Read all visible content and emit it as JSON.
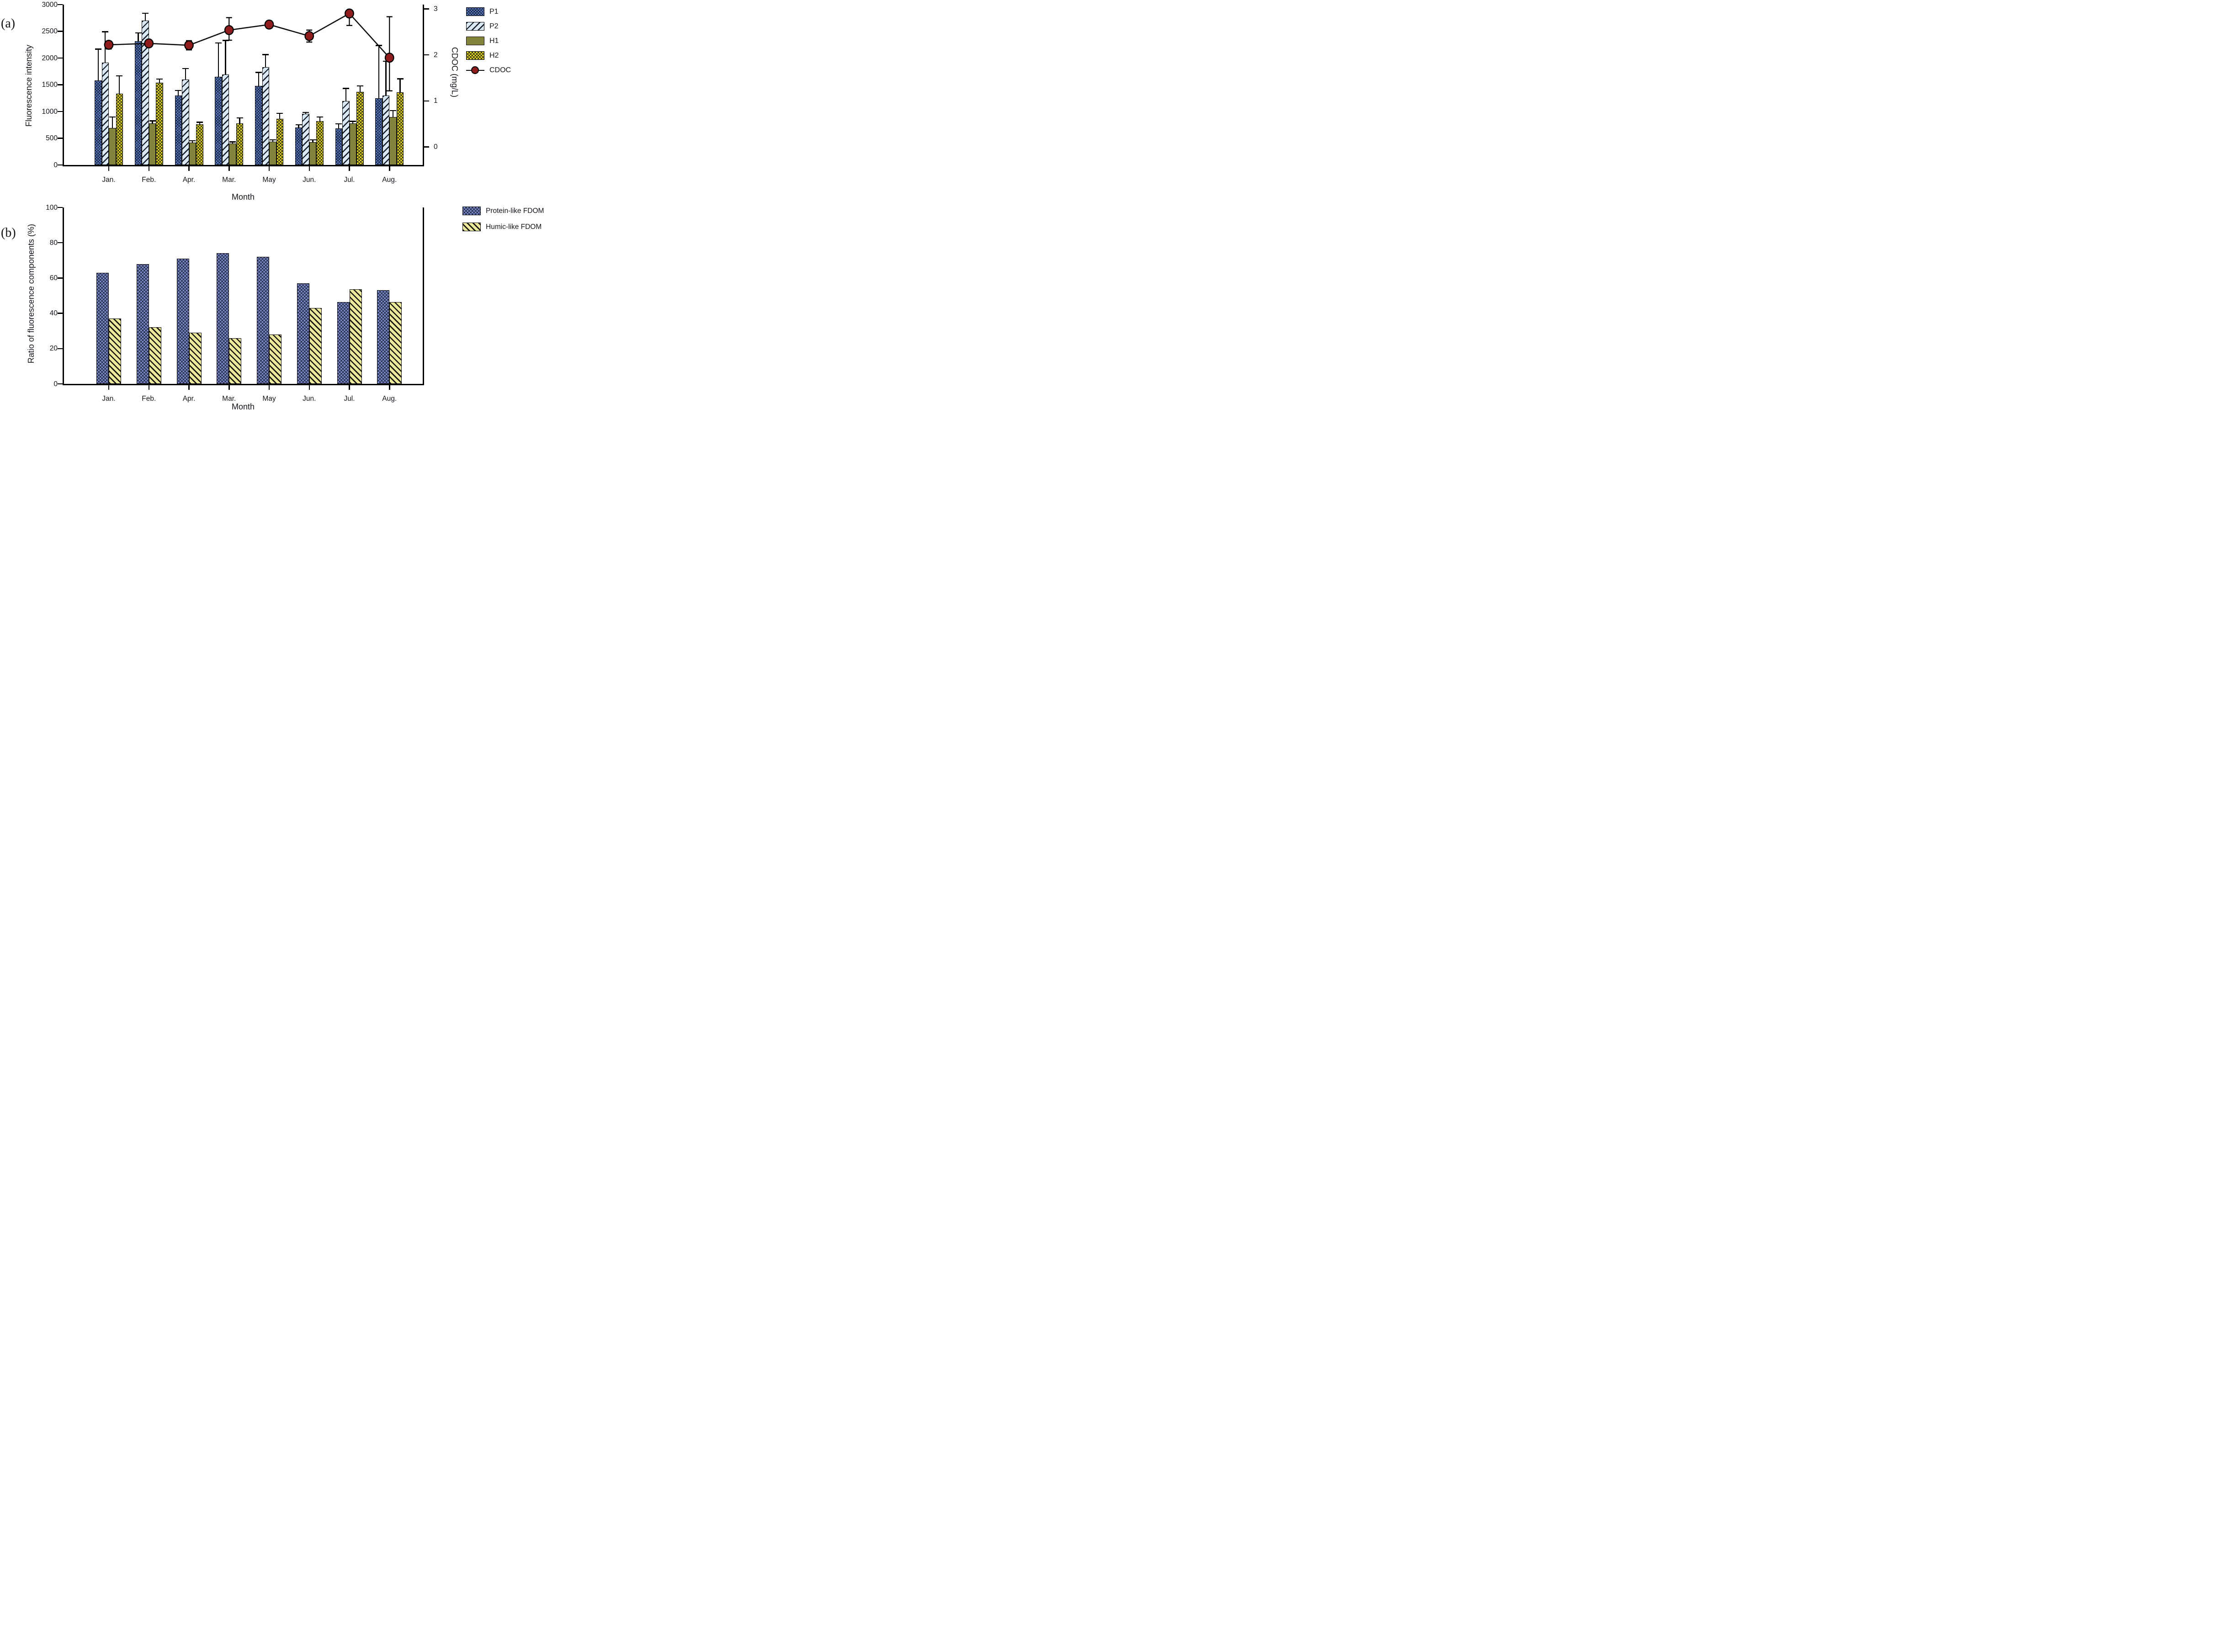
{
  "figure": {
    "panel_a_label": "(a)",
    "panel_b_label": "(b)"
  },
  "colors": {
    "p1_fill": "#5d7fc2",
    "p2_fill": "#d9e8f5",
    "h1_fill": "#84843c",
    "h2_fill": "#f0e329",
    "protein_fill": "#7b8ac8",
    "humic_fill": "#ede99c",
    "hatch": "#0a0a0a",
    "cdoc_marker": "#8f1d1d",
    "line": "#0d0d0d",
    "axis": "#000000"
  },
  "chart_data": [
    {
      "type": "bar",
      "panel": "a",
      "categories": [
        "Jan.",
        "Feb.",
        "Apr.",
        "Mar.",
        "May",
        "Jun.",
        "Jul.",
        "Aug."
      ],
      "xlabel": "Month",
      "ylabel": "Fluorescence intensity",
      "ylim": [
        0,
        3000
      ],
      "yticks": [
        0,
        500,
        1000,
        1500,
        2000,
        2500,
        3000
      ],
      "y2label": "CDOC (mg/L)",
      "y2lim": [
        0,
        3
      ],
      "y2ticks": [
        3,
        2,
        1,
        0
      ],
      "grid": false,
      "legend_position": "top-right",
      "series": [
        {
          "name": "P1",
          "pattern": "blue-crosshatch",
          "values": [
            1580,
            2315,
            1300,
            1650,
            1480,
            705,
            685,
            1245
          ],
          "err_hi": [
            2165,
            2470,
            1395,
            2280,
            1730,
            750,
            770,
            2235
          ]
        },
        {
          "name": "P2",
          "pattern": "lightblue-diagonal",
          "values": [
            1915,
            2705,
            1595,
            1695,
            1830,
            960,
            1195,
            1300
          ],
          "err_hi": [
            2490,
            2835,
            1805,
            2330,
            2065,
            985,
            1430,
            1940
          ]
        },
        {
          "name": "H1",
          "pattern": "olive-solid",
          "values": [
            690,
            780,
            415,
            400,
            440,
            430,
            780,
            895
          ],
          "err_hi": [
            900,
            825,
            455,
            430,
            470,
            470,
            815,
            1015
          ]
        },
        {
          "name": "H2",
          "pattern": "yellow-crosshatch",
          "values": [
            1335,
            1535,
            760,
            780,
            865,
            820,
            1370,
            1355
          ],
          "err_hi": [
            1665,
            1605,
            800,
            880,
            965,
            900,
            1480,
            1610
          ]
        }
      ],
      "line_series": {
        "name": "CDOC",
        "axis": "right",
        "marker": "filled-circle",
        "values": [
          2.22,
          2.25,
          2.21,
          2.54,
          2.66,
          2.41,
          2.9,
          1.94
        ],
        "err_hi": [
          2.3,
          2.31,
          2.31,
          2.81,
          2.74,
          2.54,
          2.96,
          2.83
        ],
        "err_lo": [
          2.13,
          2.19,
          2.11,
          2.32,
          2.58,
          2.28,
          2.64,
          1.22
        ]
      }
    },
    {
      "type": "bar",
      "panel": "b",
      "categories": [
        "Jan.",
        "Feb.",
        "Apr.",
        "Mar.",
        "May",
        "Jun.",
        "Jul.",
        "Aug."
      ],
      "xlabel": "Month",
      "ylabel": "Ratio of fluorescence components (%)",
      "ylim": [
        0,
        100
      ],
      "yticks": [
        0,
        20,
        40,
        60,
        80,
        100
      ],
      "grid": false,
      "legend_position": "top-right",
      "series": [
        {
          "name": "Protein-like FDOM",
          "pattern": "blue-crosshatch",
          "values": [
            63,
            68,
            71,
            74,
            72,
            57,
            46.5,
            53
          ]
        },
        {
          "name": "Humic-like FDOM",
          "pattern": "yellow-backslash",
          "values": [
            37,
            32,
            29,
            26,
            28,
            43,
            53.5,
            46.5
          ]
        }
      ]
    }
  ]
}
